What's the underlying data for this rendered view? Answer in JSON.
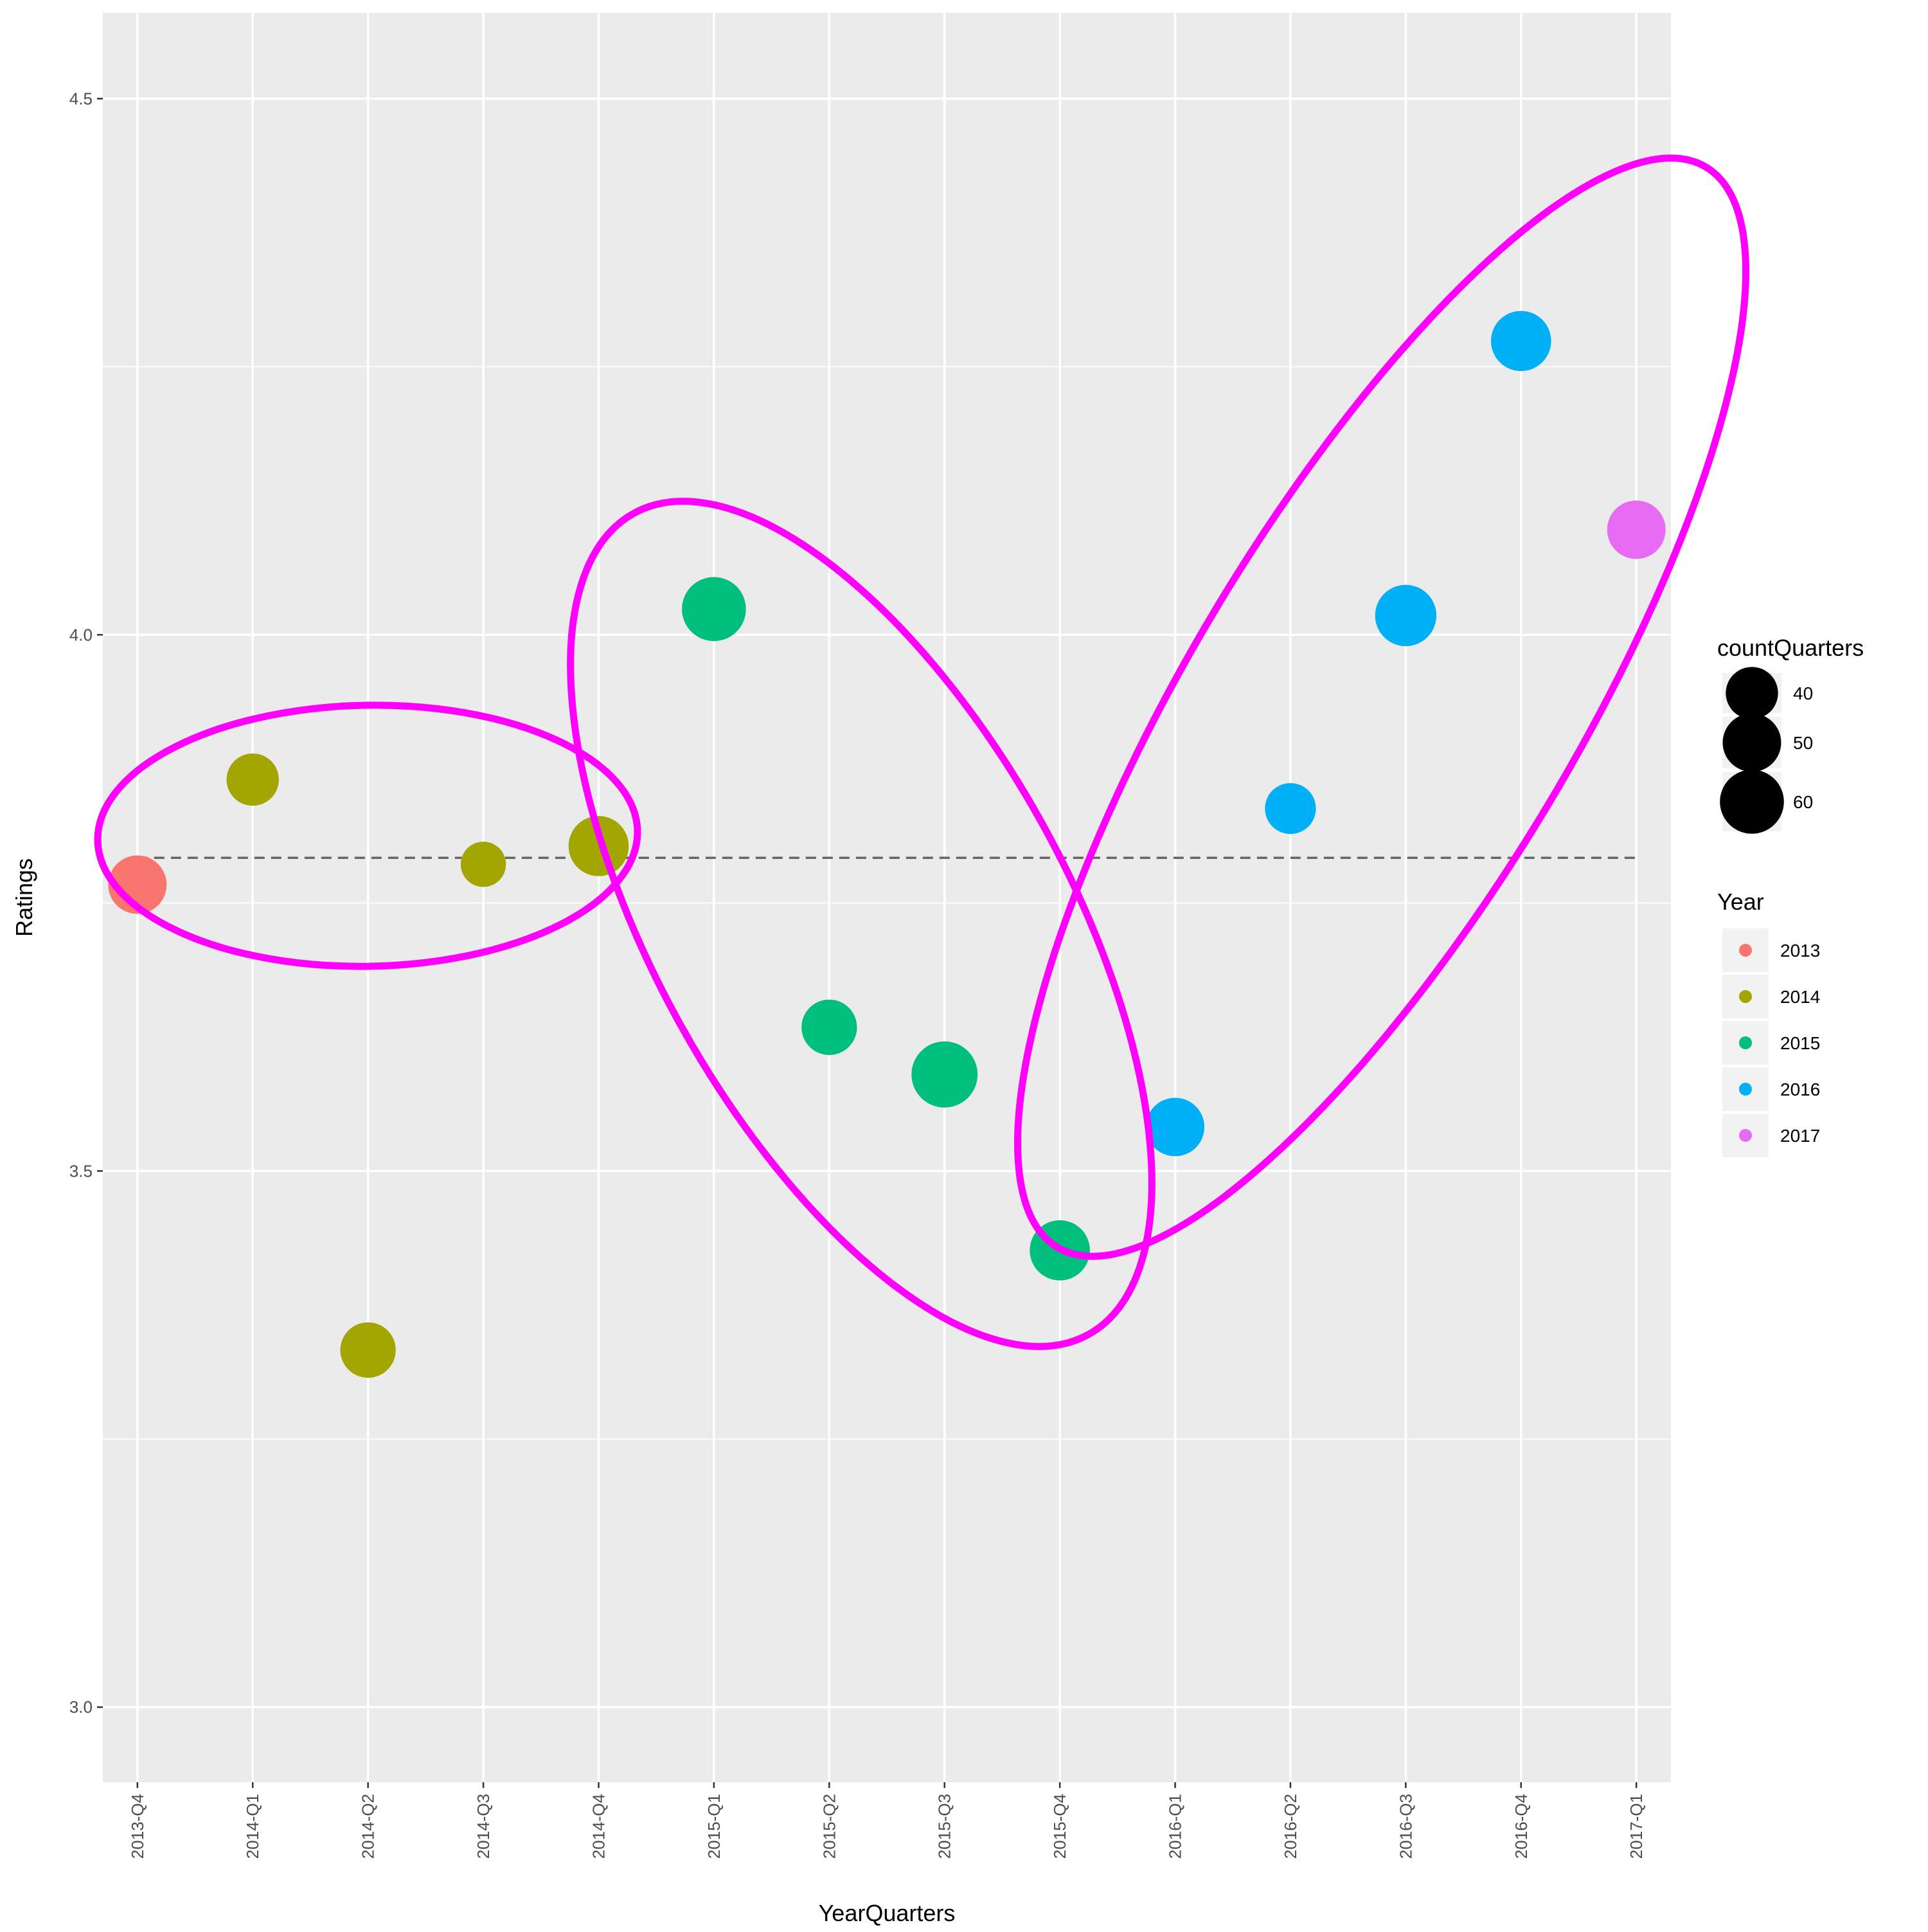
{
  "chart_data": {
    "type": "scatter",
    "xlabel": "YearQuarters",
    "ylabel": "Ratings",
    "categories": [
      "2013-Q4",
      "2014-Q1",
      "2014-Q2",
      "2014-Q3",
      "2014-Q4",
      "2015-Q1",
      "2015-Q2",
      "2015-Q3",
      "2015-Q4",
      "2016-Q1",
      "2016-Q2",
      "2016-Q3",
      "2016-Q4",
      "2017-Q1"
    ],
    "ylim": [
      2.93,
      4.58
    ],
    "yticks": [
      "3.0",
      "3.5",
      "4.0",
      "4.5"
    ],
    "grid": true,
    "points": [
      {
        "x": "2013-Q4",
        "y": 3.767,
        "count": 50,
        "year": "2013"
      },
      {
        "x": "2014-Q1",
        "y": 3.865,
        "count": 40,
        "year": "2014"
      },
      {
        "x": "2014-Q2",
        "y": 3.333,
        "count": 45,
        "year": "2014"
      },
      {
        "x": "2014-Q3",
        "y": 3.786,
        "count": 30,
        "year": "2014"
      },
      {
        "x": "2014-Q4",
        "y": 3.803,
        "count": 53,
        "year": "2014"
      },
      {
        "x": "2015-Q1",
        "y": 4.024,
        "count": 60,
        "year": "2015"
      },
      {
        "x": "2015-Q2",
        "y": 3.634,
        "count": 45,
        "year": "2015"
      },
      {
        "x": "2015-Q3",
        "y": 3.59,
        "count": 64,
        "year": "2015"
      },
      {
        "x": "2015-Q4",
        "y": 3.426,
        "count": 53,
        "year": "2015"
      },
      {
        "x": "2016-Q1",
        "y": 3.541,
        "count": 50,
        "year": "2016"
      },
      {
        "x": "2016-Q2",
        "y": 3.838,
        "count": 38,
        "year": "2016"
      },
      {
        "x": "2016-Q3",
        "y": 4.018,
        "count": 55,
        "year": "2016"
      },
      {
        "x": "2016-Q4",
        "y": 4.274,
        "count": 53,
        "year": "2016"
      },
      {
        "x": "2017-Q1",
        "y": 4.098,
        "count": 50,
        "year": "2017"
      }
    ],
    "reference_line": {
      "y": 3.792,
      "style": "dashed"
    },
    "size_legend": {
      "title": "countQuarters",
      "values": [
        40,
        50,
        60
      ]
    },
    "color_legend": {
      "title": "Year",
      "entries": [
        {
          "label": "2013",
          "color": "#F8766D"
        },
        {
          "label": "2014",
          "color": "#A3A500"
        },
        {
          "label": "2015",
          "color": "#00BF7D"
        },
        {
          "label": "2016",
          "color": "#00B0F6"
        },
        {
          "label": "2017",
          "color": "#E76BF3"
        }
      ]
    },
    "annotations": [
      {
        "shape": "ellipse",
        "color": "#FF00FF",
        "encloses": [
          "2013-Q4",
          "2014-Q1",
          "2014-Q3",
          "2014-Q4"
        ]
      },
      {
        "shape": "ellipse",
        "color": "#FF00FF",
        "encloses": [
          "2015-Q1",
          "2015-Q2",
          "2015-Q3",
          "2015-Q4"
        ]
      },
      {
        "shape": "ellipse",
        "color": "#FF00FF",
        "encloses": [
          "2016-Q1",
          "2016-Q2",
          "2016-Q3",
          "2016-Q4",
          "2017-Q1"
        ]
      }
    ],
    "legend_position": "right"
  }
}
